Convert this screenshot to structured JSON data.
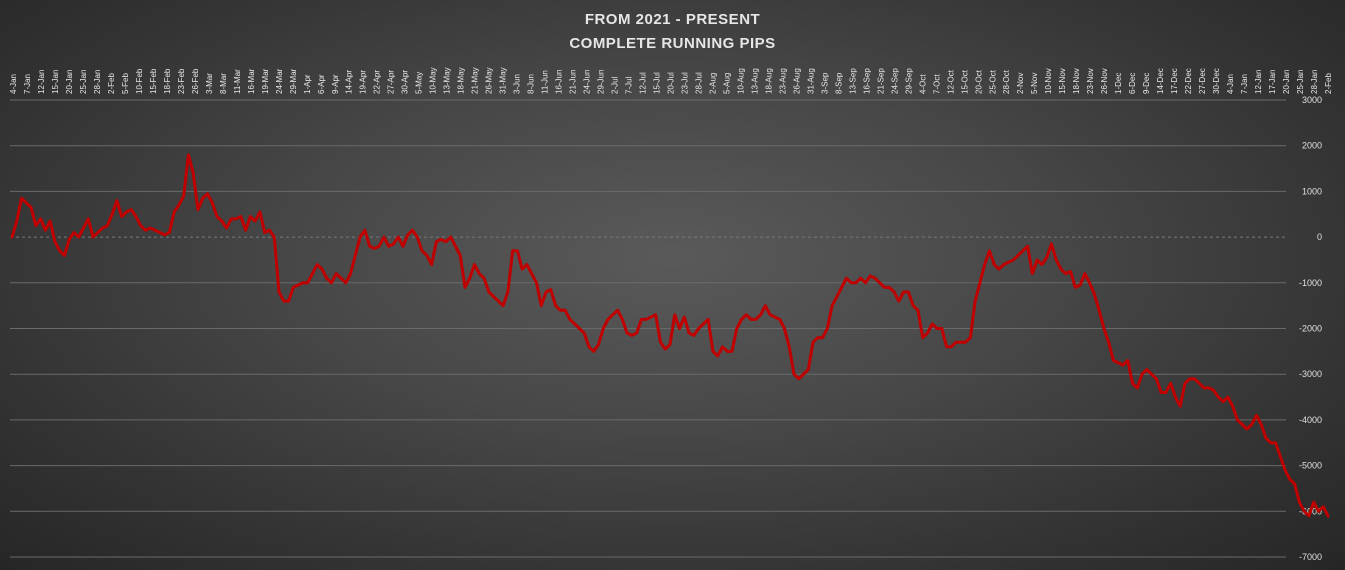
{
  "chart_data": {
    "type": "line",
    "title_lines": [
      "FROM 2021 - PRESENT",
      "COMPLETE RUNNING PIPS"
    ],
    "xlabel": "",
    "ylabel": "",
    "ylim": [
      -7000,
      3000
    ],
    "y_ticks": [
      3000,
      2000,
      1000,
      0,
      -1000,
      -2000,
      -3000,
      -4000,
      -5000,
      -6000,
      -7000
    ],
    "y_axis_position": "right",
    "x_axis_position": "top",
    "grid": true,
    "legend": "none",
    "x_tick_labels": [
      "4-Jan",
      "7-Jan",
      "12-Jan",
      "15-Jan",
      "20-Jan",
      "25-Jan",
      "28-Jan",
      "2-Feb",
      "5-Feb",
      "10-Feb",
      "15-Feb",
      "18-Feb",
      "23-Feb",
      "26-Feb",
      "3-Mar",
      "8-Mar",
      "11-Mar",
      "16-Mar",
      "19-Mar",
      "24-Mar",
      "29-Mar",
      "1-Apr",
      "6-Apr",
      "9-Apr",
      "14-Apr",
      "19-Apr",
      "22-Apr",
      "27-Apr",
      "30-Apr",
      "5-May",
      "10-May",
      "13-May",
      "18-May",
      "21-May",
      "26-May",
      "31-May",
      "3-Jun",
      "8-Jun",
      "11-Jun",
      "16-Jun",
      "21-Jun",
      "24-Jun",
      "29-Jun",
      "2-Jul",
      "7-Jul",
      "12-Jul",
      "15-Jul",
      "20-Jul",
      "23-Jul",
      "28-Jul",
      "2-Aug",
      "5-Aug",
      "10-Aug",
      "13-Aug",
      "18-Aug",
      "23-Aug",
      "26-Aug",
      "31-Aug",
      "3-Sep",
      "8-Sep",
      "13-Sep",
      "16-Sep",
      "21-Sep",
      "24-Sep",
      "29-Sep",
      "4-Oct",
      "7-Oct",
      "12-Oct",
      "15-Oct",
      "20-Oct",
      "25-Oct",
      "28-Oct",
      "2-Nov",
      "5-Nov",
      "10-Nov",
      "15-Nov",
      "18-Nov",
      "23-Nov",
      "26-Nov",
      "1-Dec",
      "6-Dec",
      "9-Dec",
      "14-Dec",
      "17-Dec",
      "22-Dec",
      "27-Dec",
      "30-Dec",
      "4-Jan",
      "7-Jan",
      "12-Jan",
      "17-Jan",
      "20-Jan",
      "25-Jan",
      "28-Jan",
      "2-Feb"
    ],
    "series": [
      {
        "color": "#c00000",
        "values": [
          0,
          350,
          850,
          750,
          650,
          250,
          400,
          150,
          350,
          -100,
          -300,
          -400,
          -50,
          100,
          0,
          200,
          400,
          0,
          100,
          200,
          250,
          500,
          800,
          450,
          550,
          600,
          450,
          250,
          150,
          200,
          150,
          100,
          50,
          100,
          550,
          700,
          900,
          1800,
          1400,
          600,
          850,
          950,
          750,
          450,
          350,
          200,
          400,
          400,
          450,
          150,
          450,
          350,
          550,
          100,
          150,
          0,
          -1200,
          -1400,
          -1400,
          -1100,
          -1050,
          -1000,
          -1000,
          -800,
          -600,
          -700,
          -900,
          -1000,
          -800,
          -900,
          -1000,
          -800,
          -400,
          0,
          150,
          -200,
          -250,
          -200,
          0,
          -200,
          -150,
          0,
          -200,
          50,
          150,
          0,
          -300,
          -400,
          -600,
          -100,
          -50,
          -100,
          0,
          -200,
          -400,
          -1100,
          -900,
          -600,
          -800,
          -900,
          -1200,
          -1300,
          -1400,
          -1500,
          -1200,
          -300,
          -300,
          -700,
          -600,
          -800,
          -1000,
          -1500,
          -1200,
          -1150,
          -1500,
          -1600,
          -1600,
          -1800,
          -1900,
          -2000,
          -2100,
          -2400,
          -2500,
          -2350,
          -2000,
          -1800,
          -1700,
          -1600,
          -1800,
          -2100,
          -2150,
          -2100,
          -1800,
          -1800,
          -1750,
          -1700,
          -2300,
          -2450,
          -2350,
          -1700,
          -2000,
          -1750,
          -2100,
          -2150,
          -2000,
          -1900,
          -1800,
          -2500,
          -2600,
          -2400,
          -2500,
          -2500,
          -2000,
          -1800,
          -1700,
          -1800,
          -1800,
          -1700,
          -1500,
          -1700,
          -1750,
          -1800,
          -2000,
          -2400,
          -3000,
          -3100,
          -3000,
          -2900,
          -2300,
          -2200,
          -2200,
          -2000,
          -1500,
          -1300,
          -1100,
          -900,
          -1000,
          -1000,
          -900,
          -1000,
          -850,
          -900,
          -1000,
          -1100,
          -1100,
          -1200,
          -1400,
          -1200,
          -1200,
          -1500,
          -1600,
          -2200,
          -2100,
          -1900,
          -2000,
          -2000,
          -2400,
          -2400,
          -2300,
          -2300,
          -2300,
          -2200,
          -1400,
          -1000,
          -600,
          -300,
          -600,
          -700,
          -600,
          -550,
          -500,
          -400,
          -300,
          -200,
          -800,
          -500,
          -600,
          -450,
          -150,
          -500,
          -700,
          -800,
          -750,
          -1100,
          -1050,
          -800,
          -1000,
          -1250,
          -1600,
          -2000,
          -2300,
          -2700,
          -2750,
          -2800,
          -2700,
          -3200,
          -3300,
          -3000,
          -2900,
          -3000,
          -3100,
          -3400,
          -3400,
          -3200,
          -3500,
          -3700,
          -3200,
          -3100,
          -3100,
          -3200,
          -3300,
          -3300,
          -3350,
          -3500,
          -3600,
          -3500,
          -3700,
          -4000,
          -4100,
          -4200,
          -4100,
          -3900,
          -4100,
          -4400,
          -4500,
          -4500,
          -4800,
          -5100,
          -5300,
          -5400,
          -5800,
          -6000,
          -6100,
          -5800,
          -6000,
          -5900,
          -6100
        ]
      }
    ]
  }
}
